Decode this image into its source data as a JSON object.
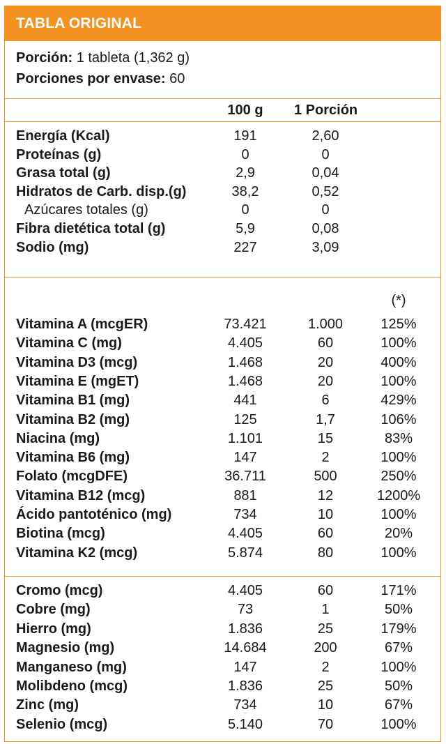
{
  "title": "TABLA ORIGINAL",
  "serving": {
    "portion_label": "Porción:",
    "portion_value": "1 tableta (1,362 g)",
    "per_pack_label": "Porciones por envase:",
    "per_pack_value": "60"
  },
  "columns": {
    "col1": "100 g",
    "col2": "1 Porción",
    "col3": "(*)"
  },
  "macros": [
    {
      "label": "Energía (Kcal)",
      "v100": "191",
      "vport": "2,60",
      "bold": true
    },
    {
      "label": "Proteínas (g)",
      "v100": "0",
      "vport": "0",
      "bold": true
    },
    {
      "label": "Grasa total (g)",
      "v100": "2,9",
      "vport": "0,04",
      "bold": true
    },
    {
      "label": "Hidratos de Carb. disp.(g)",
      "v100": "38,2",
      "vport": "0,52",
      "bold": true
    },
    {
      "label": " Azúcares totales (g)",
      "v100": "0",
      "vport": "0",
      "bold": false
    },
    {
      "label": "Fibra dietética total (g)",
      "v100": "5,9",
      "vport": "0,08",
      "bold": true
    },
    {
      "label": "Sodio (mg)",
      "v100": "227",
      "vport": "3,09",
      "bold": true
    }
  ],
  "vitamins": [
    {
      "label": "Vitamina A (mcgER)",
      "v100": "73.421",
      "vport": "1.000",
      "pct": "125%"
    },
    {
      "label": "Vitamina C (mg)",
      "v100": "4.405",
      "vport": "60",
      "pct": "100%"
    },
    {
      "label": "Vitamina D3 (mcg)",
      "v100": "1.468",
      "vport": "20",
      "pct": "400%"
    },
    {
      "label": "Vitamina E (mgET)",
      "v100": "1.468",
      "vport": "20",
      "pct": "100%"
    },
    {
      "label": "Vitamina B1 (mg)",
      "v100": "441",
      "vport": "6",
      "pct": "429%"
    },
    {
      "label": "Vitamina B2 (mg)",
      "v100": "125",
      "vport": "1,7",
      "pct": "106%"
    },
    {
      "label": "Niacina (mg)",
      "v100": "1.101",
      "vport": "15",
      "pct": "83%"
    },
    {
      "label": "Vitamina B6 (mg)",
      "v100": "147",
      "vport": "2",
      "pct": "100%"
    },
    {
      "label": "Folato (mcgDFE)",
      "v100": "36.711",
      "vport": "500",
      "pct": "250%"
    },
    {
      "label": "Vitamina B12 (mcg)",
      "v100": "881",
      "vport": "12",
      "pct": "1200%"
    },
    {
      "label": "Ácido pantoténico (mg)",
      "v100": "734",
      "vport": "10",
      "pct": "100%"
    },
    {
      "label": "Biotina (mcg)",
      "v100": "4.405",
      "vport": "60",
      "pct": "20%"
    },
    {
      "label": "Vitamina K2 (mcg)",
      "v100": "5.874",
      "vport": "80",
      "pct": "100%"
    }
  ],
  "minerals": [
    {
      "label": "Cromo (mcg)",
      "v100": "4.405",
      "vport": "60",
      "pct": "171%"
    },
    {
      "label": "Cobre (mg)",
      "v100": "73",
      "vport": "1",
      "pct": "50%"
    },
    {
      "label": "Hierro (mg)",
      "v100": "1.836",
      "vport": "25",
      "pct": "179%"
    },
    {
      "label": "Magnesio (mg)",
      "v100": "14.684",
      "vport": "200",
      "pct": "67%"
    },
    {
      "label": "Manganeso (mg)",
      "v100": "147",
      "vport": "2",
      "pct": "100%"
    },
    {
      "label": "Molibdeno (mcg)",
      "v100": "1.836",
      "vport": "25",
      "pct": "50%"
    },
    {
      "label": "Zinc (mg)",
      "v100": "734",
      "vport": "10",
      "pct": "67%"
    },
    {
      "label": "Selenio (mcg)",
      "v100": "5.140",
      "vport": "70",
      "pct": "100%"
    }
  ]
}
